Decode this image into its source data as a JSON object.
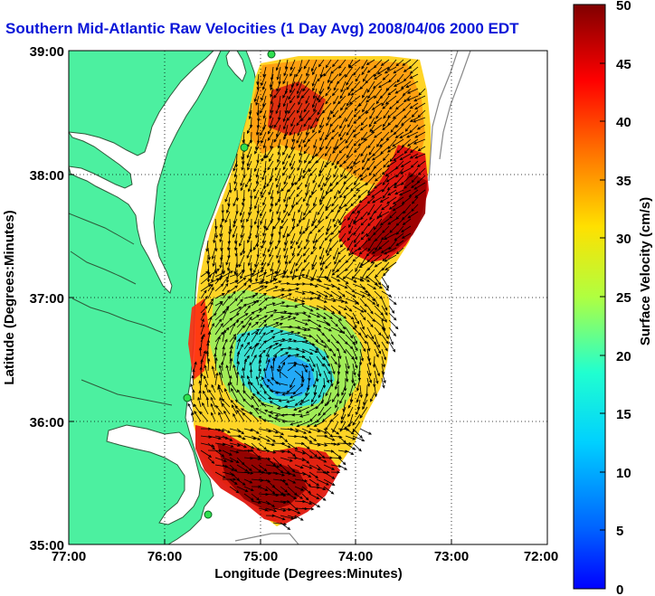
{
  "title": "Southern Mid-Atlantic Raw Velocities (1 Day Avg) 2008/04/06 2000 EDT",
  "x_axis": {
    "label": "Longitude (Degrees:Minutes)",
    "ticks": [
      "77:00",
      "76:00",
      "75:00",
      "74:00",
      "73:00",
      "72:00"
    ]
  },
  "y_axis": {
    "label": "Latitude (Degrees:Minutes)",
    "ticks": [
      "39:00",
      "38:00",
      "37:00",
      "36:00",
      "35:00"
    ]
  },
  "colorbar": {
    "label": "Surface Velocity (cm/s)",
    "ticks": [
      "50",
      "45",
      "40",
      "35",
      "30",
      "25",
      "20",
      "15",
      "10",
      "5",
      "0"
    ],
    "range": [
      0,
      50
    ],
    "colormap": "jet"
  },
  "colors": {
    "title": "#0a16d8",
    "land": "#4cf0a0",
    "coastline": "#2e5a3a",
    "ocean": "#ffffff",
    "arrows": "#000000",
    "stations": "#30e050"
  }
}
